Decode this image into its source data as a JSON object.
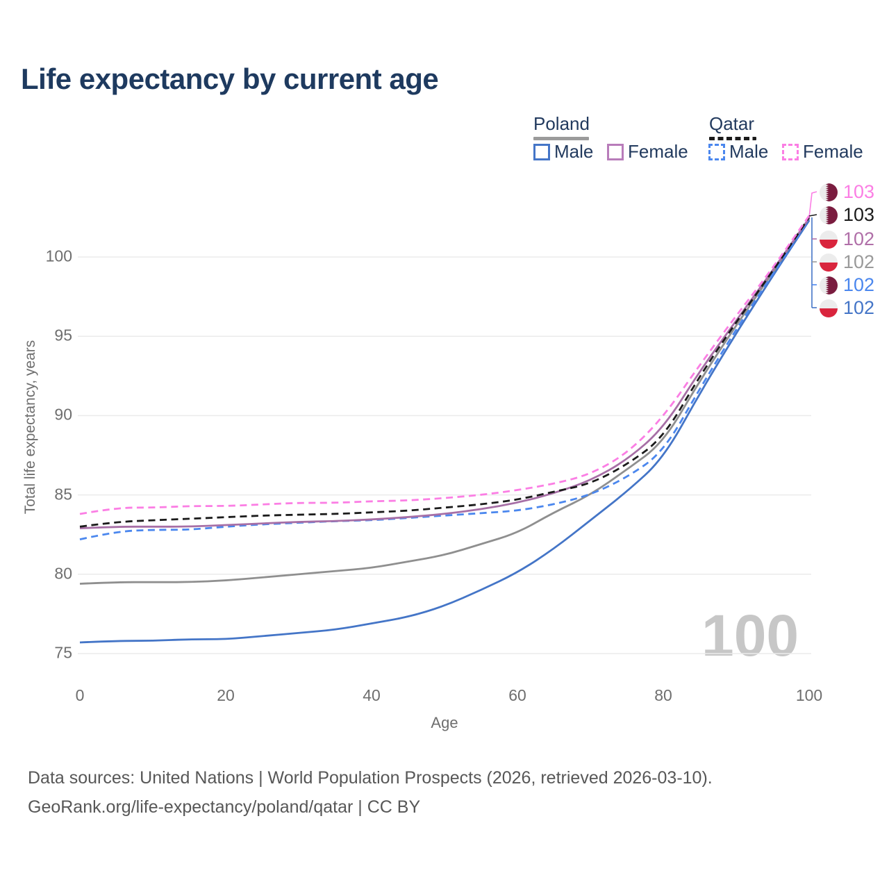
{
  "title": "Life expectancy by current age",
  "watermark_age": "100",
  "legend": {
    "groups": [
      {
        "label": "Poland",
        "line_style": "solid",
        "underline_color": "#9b9b9b",
        "items": [
          {
            "label": "Male",
            "color": "#4475c7",
            "dashed": false
          },
          {
            "label": "Female",
            "color": "#b87cba",
            "dashed": false
          }
        ]
      },
      {
        "label": "Qatar",
        "line_style": "dashed",
        "underline_color": "#1b1b1b",
        "items": [
          {
            "label": "Male",
            "color": "#4b87ee",
            "dashed": true
          },
          {
            "label": "Female",
            "color": "#fb7ee4",
            "dashed": true
          }
        ]
      }
    ]
  },
  "axes": {
    "y_title": "Total life expectancy, years",
    "x_title": "Age",
    "y_ticks": [
      "75",
      "80",
      "85",
      "90",
      "95",
      "100"
    ],
    "x_ticks": [
      "0",
      "20",
      "40",
      "60",
      "80",
      "100"
    ]
  },
  "end_labels": [
    {
      "value": "103",
      "series": "Qatar Female",
      "flag": "qatar",
      "color": "#fb7ee4"
    },
    {
      "value": "103",
      "series": "Qatar",
      "flag": "qatar",
      "color": "#1b1b1b"
    },
    {
      "value": "102",
      "series": "Poland Female",
      "flag": "poland",
      "color": "#b06fa8"
    },
    {
      "value": "102",
      "series": "Poland",
      "flag": "poland",
      "color": "#9a9a9a"
    },
    {
      "value": "102",
      "series": "Qatar Male",
      "flag": "qatar",
      "color": "#4b87ee"
    },
    {
      "value": "102",
      "series": "Poland Male",
      "flag": "poland",
      "color": "#4475c7"
    }
  ],
  "source_lines": [
    "Data sources: United Nations | World Population Prospects (2026, retrieved 2026-03-10).",
    "GeoRank.org/life-expectancy/poland/qatar | CC BY"
  ],
  "chart_data": {
    "type": "line",
    "title": "Life expectancy by current age",
    "xlabel": "Age",
    "ylabel": "Total life expectancy, years",
    "x_range": [
      0,
      100
    ],
    "y_tick_range": [
      75,
      100
    ],
    "grid": "horizontal",
    "legend_position": "top-right",
    "x": [
      0,
      5,
      10,
      15,
      20,
      25,
      30,
      35,
      40,
      45,
      50,
      55,
      60,
      65,
      70,
      75,
      80,
      85,
      90,
      95,
      100
    ],
    "series": [
      {
        "name": "Poland Male",
        "country": "Poland",
        "sex": "male",
        "color": "#4475c7",
        "dashed": false,
        "values": [
          75.7,
          75.8,
          75.8,
          75.9,
          75.9,
          76.1,
          76.3,
          76.5,
          76.9,
          77.3,
          78.0,
          79.0,
          80.1,
          81.6,
          83.4,
          85.2,
          87.3,
          91.4,
          95.2,
          98.8,
          102.3
        ]
      },
      {
        "name": "Poland Female",
        "country": "Poland",
        "sex": "female",
        "color": "#a76fa6",
        "dashed": false,
        "values": [
          82.9,
          83.0,
          83.0,
          83.0,
          83.1,
          83.2,
          83.3,
          83.35,
          83.45,
          83.6,
          83.8,
          84.1,
          84.5,
          85.1,
          85.9,
          87.2,
          89.2,
          92.8,
          96.0,
          99.15,
          102.45
        ]
      },
      {
        "name": "Poland",
        "country": "Poland",
        "sex": "both",
        "color": "#8f8f8f",
        "dashed": false,
        "values": [
          79.4,
          79.5,
          79.5,
          79.5,
          79.6,
          79.8,
          80.0,
          80.2,
          80.4,
          80.8,
          81.2,
          81.9,
          82.6,
          83.9,
          85.0,
          86.6,
          88.3,
          92.2,
          95.7,
          99.0,
          102.4
        ]
      },
      {
        "name": "Qatar Male",
        "country": "Qatar",
        "sex": "male",
        "color": "#4b87ee",
        "dashed": true,
        "values": [
          82.2,
          82.7,
          82.8,
          82.8,
          83.0,
          83.15,
          83.25,
          83.35,
          83.4,
          83.55,
          83.7,
          83.85,
          84.0,
          84.4,
          85.0,
          86.1,
          87.7,
          91.7,
          95.45,
          98.9,
          102.35
        ]
      },
      {
        "name": "Qatar Female",
        "country": "Qatar",
        "sex": "female",
        "color": "#fb7ee4",
        "dashed": true,
        "values": [
          83.8,
          84.2,
          84.2,
          84.3,
          84.3,
          84.4,
          84.5,
          84.5,
          84.6,
          84.65,
          84.8,
          85.0,
          85.3,
          85.7,
          86.3,
          87.6,
          89.9,
          93.2,
          96.3,
          99.3,
          102.6
        ]
      },
      {
        "name": "Qatar",
        "country": "Qatar",
        "sex": "both",
        "color": "#1b1b1b",
        "dashed": true,
        "values": [
          83.0,
          83.3,
          83.4,
          83.5,
          83.6,
          83.7,
          83.75,
          83.8,
          83.9,
          84.0,
          84.2,
          84.4,
          84.7,
          85.2,
          85.7,
          86.9,
          88.6,
          92.5,
          95.9,
          99.1,
          102.5
        ]
      }
    ]
  }
}
